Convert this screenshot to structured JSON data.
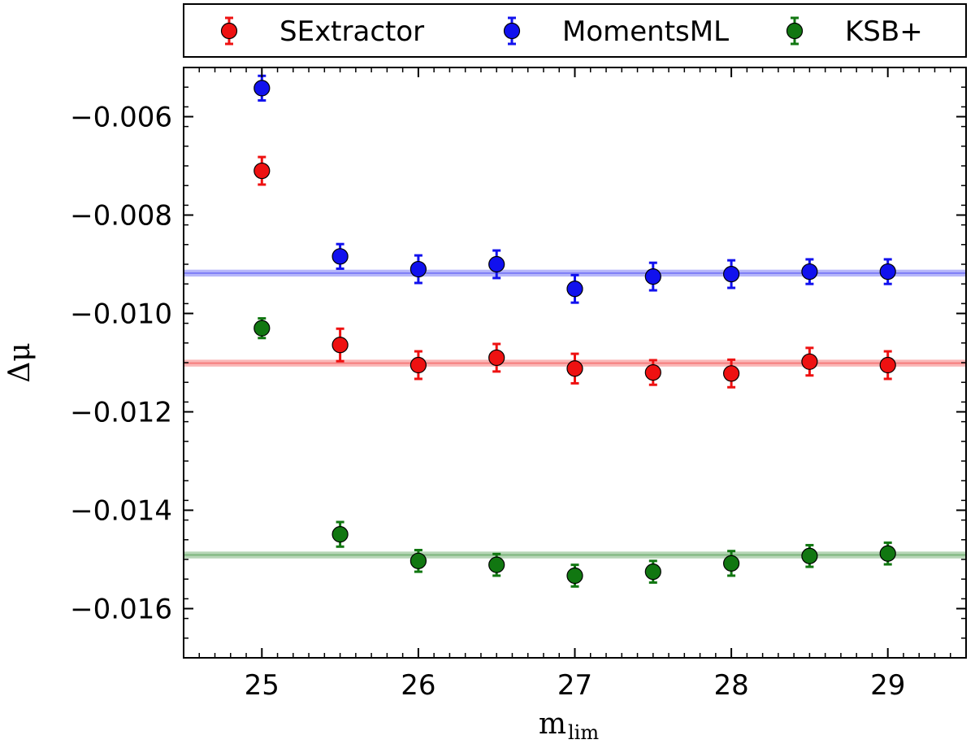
{
  "chart_data": {
    "type": "scatter",
    "title": "",
    "xlabel": "m",
    "xlabel_subscript": "lim",
    "ylabel": "Δμ",
    "xlim": [
      24.5,
      29.5
    ],
    "ylim": [
      -0.017,
      -0.005
    ],
    "xticks": [
      25,
      26,
      27,
      28,
      29
    ],
    "yticks": [
      -0.016,
      -0.014,
      -0.012,
      -0.01,
      -0.008,
      -0.006
    ],
    "ytick_labels": [
      "−0.016",
      "−0.014",
      "−0.012",
      "−0.010",
      "−0.008",
      "−0.006"
    ],
    "xtick_labels": [
      "25",
      "26",
      "27",
      "28",
      "29"
    ],
    "grid": false,
    "legend_position": "top, outside plot",
    "series": [
      {
        "name": "SExtractor",
        "color": "#ee1111",
        "x": [
          25.0,
          25.5,
          26.0,
          26.5,
          27.0,
          27.5,
          28.0,
          28.5,
          29.0
        ],
        "y": [
          -0.0071,
          -0.01064,
          -0.01105,
          -0.0109,
          -0.01112,
          -0.0112,
          -0.01122,
          -0.01098,
          -0.01105
        ],
        "yerr": [
          0.00028,
          0.00033,
          0.00028,
          0.00028,
          0.0003,
          0.00025,
          0.00028,
          0.00028,
          0.00028
        ],
        "fit": -0.01101,
        "fit_band": 7e-05
      },
      {
        "name": "MomentsML",
        "color": "#1111ee",
        "x": [
          25.0,
          25.5,
          26.0,
          26.5,
          27.0,
          27.5,
          28.0,
          28.5,
          29.0
        ],
        "y": [
          -0.00542,
          -0.00884,
          -0.0091,
          -0.009,
          -0.0095,
          -0.00925,
          -0.0092,
          -0.00915,
          -0.00915
        ],
        "yerr": [
          0.00025,
          0.00025,
          0.00028,
          0.00028,
          0.00028,
          0.00028,
          0.00028,
          0.00025,
          0.00025
        ],
        "fit": -0.00918,
        "fit_band": 7e-05
      },
      {
        "name": "KSB+",
        "color": "#117711",
        "x": [
          25.0,
          25.5,
          26.0,
          26.5,
          27.0,
          27.5,
          28.0,
          28.5,
          29.0
        ],
        "y": [
          -0.0103,
          -0.01449,
          -0.01503,
          -0.01511,
          -0.01533,
          -0.01525,
          -0.01508,
          -0.01493,
          -0.01488
        ],
        "yerr": [
          0.0002,
          0.00025,
          0.00022,
          0.00022,
          0.00022,
          0.00022,
          0.00025,
          0.00022,
          0.00022
        ],
        "fit": -0.01491,
        "fit_band": 7e-05
      }
    ]
  }
}
